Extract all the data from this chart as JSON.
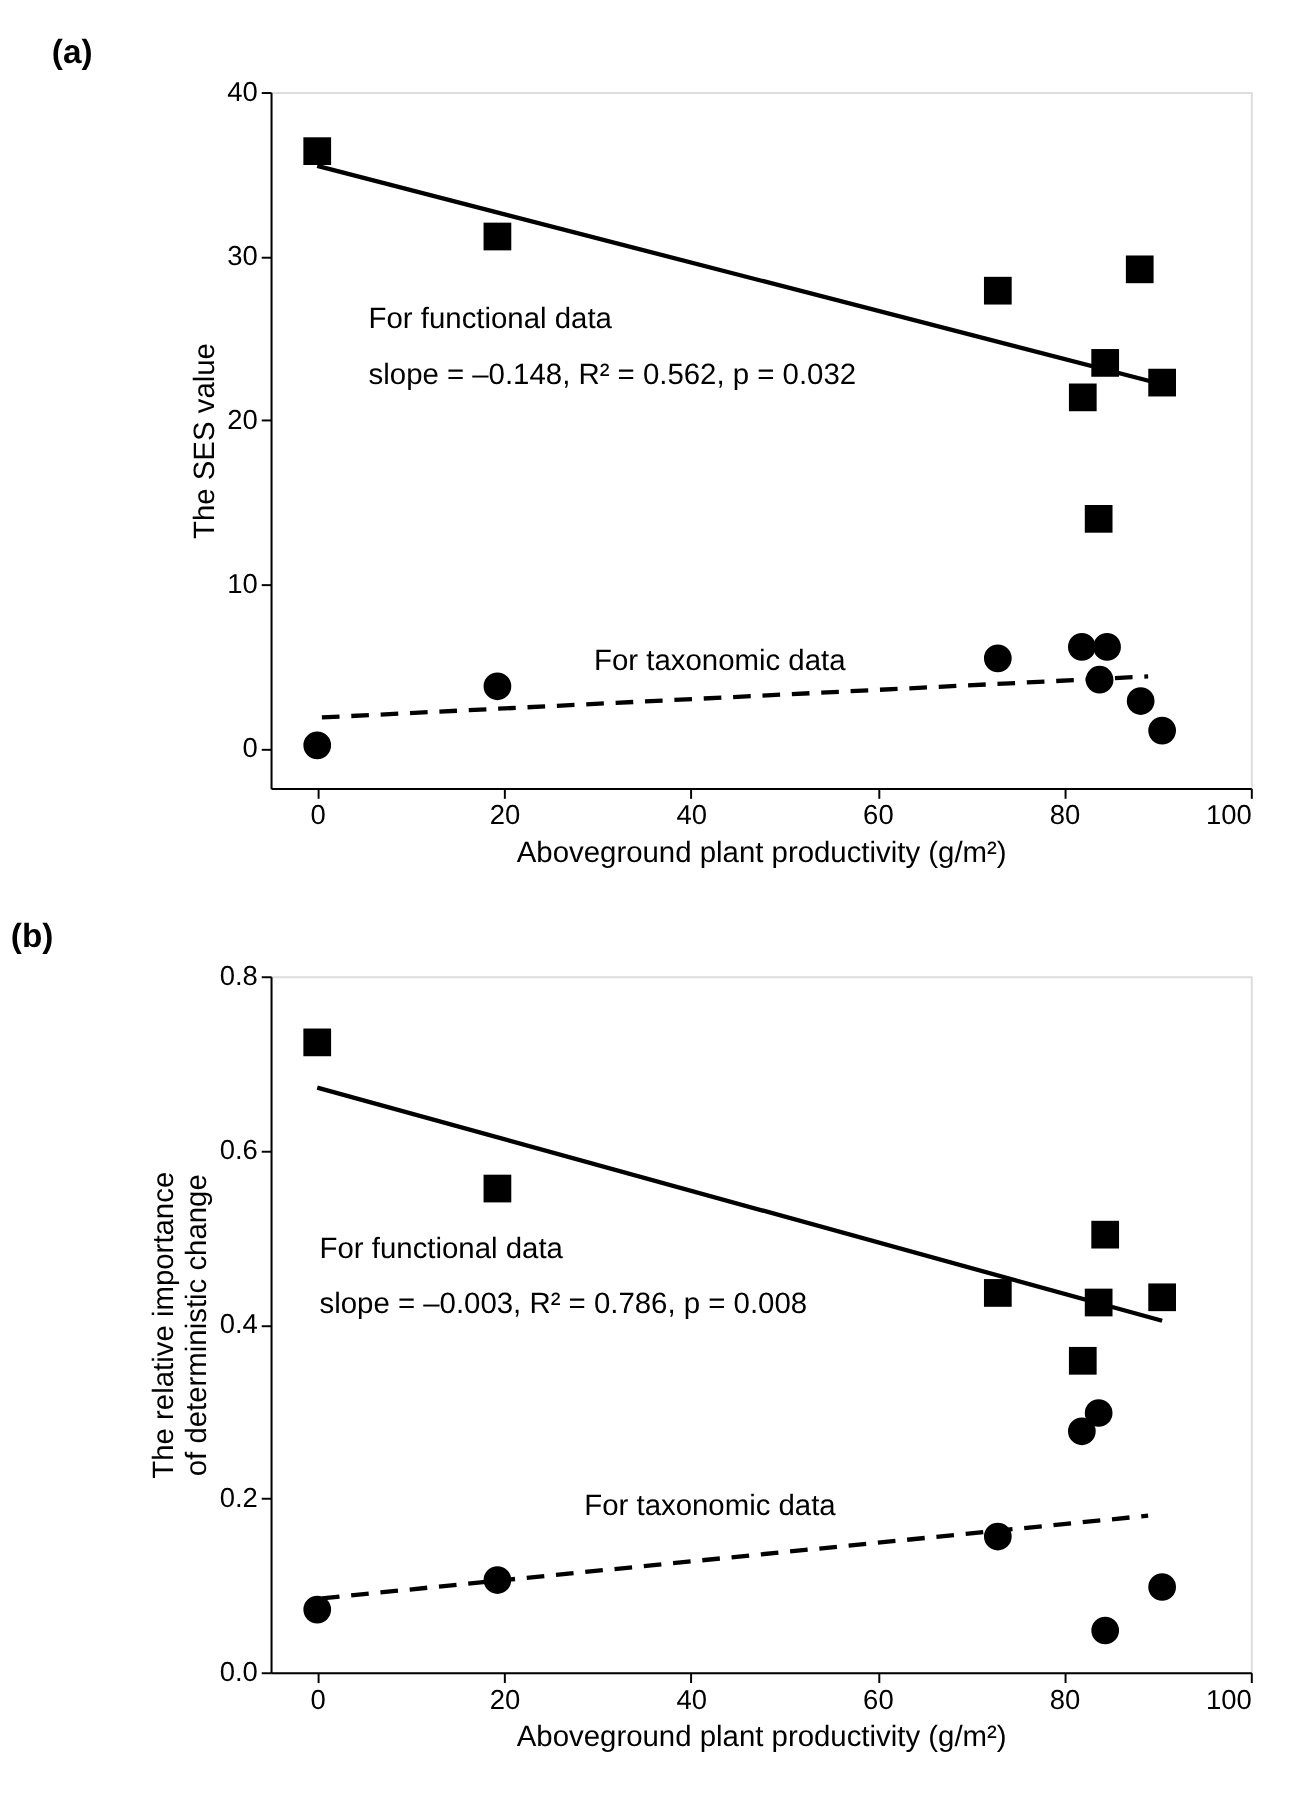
{
  "chart_data": [
    {
      "type": "scatter",
      "title": "(a)",
      "xlabel": "Aboveground plant productivity (g/m²)",
      "ylabel": "The SES value",
      "xlim": [
        -5,
        100
      ],
      "xticks": [
        0,
        20,
        40,
        60,
        80,
        100
      ],
      "ylim": [
        -2.4,
        40
      ],
      "yticks": [
        0,
        10,
        20,
        30,
        40
      ],
      "grid": false,
      "series": [
        {
          "marker": "square",
          "color": "#000000",
          "x": [
            0,
            19.3,
            72.9,
            88.1,
            84.4,
            90.5,
            82.0,
            83.7
          ],
          "values": [
            36.4,
            31.2,
            27.9,
            29.2,
            23.5,
            22.3,
            21.4,
            14.0
          ]
        },
        {
          "marker": "circle",
          "color": "#000000",
          "x": [
            0,
            19.3,
            72.9,
            81.9,
            84.6,
            83.8,
            88.2,
            90.5
          ],
          "values": [
            0.2,
            3.8,
            5.5,
            6.2,
            6.2,
            4.2,
            2.9,
            1.1
          ]
        },
        {
          "type": "line",
          "line_style": "solid",
          "color": "#000000",
          "x": [
            0,
            90.5
          ],
          "values": [
            35.5,
            22.2
          ]
        },
        {
          "type": "line",
          "line_style": "dashed",
          "color": "#000000",
          "x": [
            0.5,
            89
          ],
          "values": [
            1.9,
            4.4
          ]
        }
      ],
      "annotations": [
        "For functional data",
        "slope = –0.148, R² = 0.562, p = 0.032",
        "For taxonomic data"
      ]
    },
    {
      "type": "scatter",
      "title": "(b)",
      "xlabel": "Aboveground plant productivity (g/m²)",
      "ylabel": "The relative importance of deterministic change",
      "xlim": [
        -5,
        100
      ],
      "xticks": [
        0,
        20,
        40,
        60,
        80,
        100
      ],
      "ylim": [
        0,
        0.8
      ],
      "yticks": [
        {
          "value": 0,
          "label": "0.0"
        },
        0.2,
        0.4,
        0.6,
        0.8
      ],
      "grid": false,
      "series": [
        {
          "marker": "square",
          "color": "#000000",
          "x": [
            0,
            19.3,
            72.9,
            84.4,
            83.7,
            90.5,
            82.0
          ],
          "values": [
            0.724,
            0.556,
            0.436,
            0.503,
            0.425,
            0.431,
            0.358
          ]
        },
        {
          "marker": "circle",
          "color": "#000000",
          "x": [
            0,
            19.3,
            72.9,
            81.9,
            83.7,
            84.4,
            90.5
          ],
          "values": [
            0.072,
            0.106,
            0.156,
            0.277,
            0.298,
            0.048,
            0.098
          ]
        },
        {
          "type": "line",
          "line_style": "solid",
          "color": "#000000",
          "x": [
            0,
            90.5
          ],
          "values": [
            0.672,
            0.404
          ]
        },
        {
          "type": "line",
          "line_style": "dashed",
          "color": "#000000",
          "x": [
            0.5,
            89
          ],
          "values": [
            0.085,
            0.18
          ]
        }
      ],
      "annotations": [
        "For functional data",
        "slope = –0.003, R² = 0.786, p = 0.008",
        "For taxonomic data"
      ]
    }
  ]
}
